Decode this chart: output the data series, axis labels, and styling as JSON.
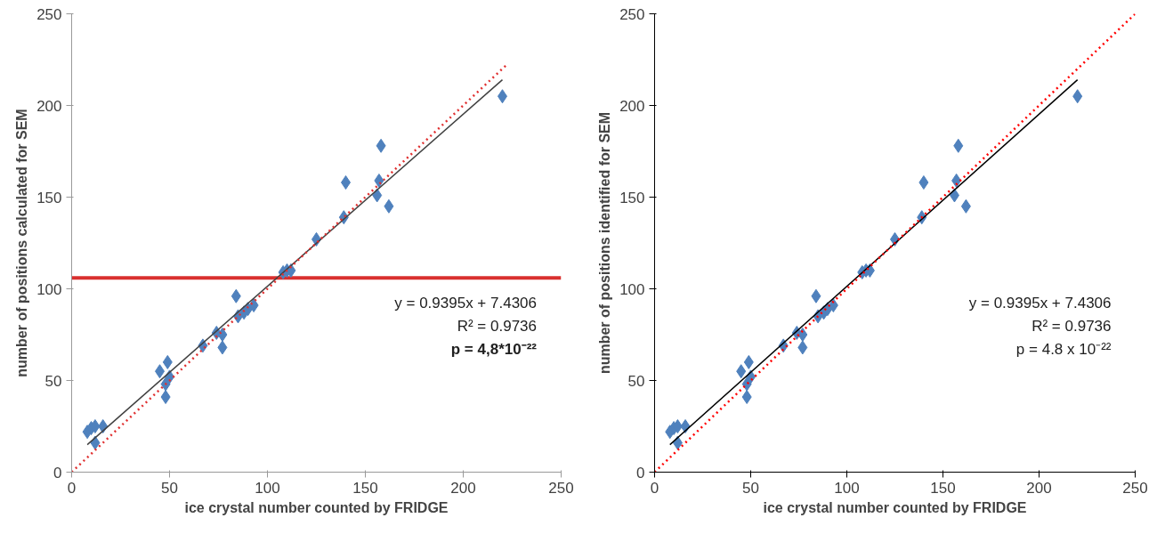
{
  "chart_data": [
    {
      "type": "scatter",
      "xlabel": "ice crystal number counted by FRIDGE",
      "ylabel": "number of positions calculated for SEM",
      "xlim": [
        0,
        250
      ],
      "ylim": [
        0,
        250
      ],
      "xticks": [
        0,
        50,
        100,
        150,
        200,
        250
      ],
      "yticks": [
        0,
        50,
        100,
        150,
        200,
        250
      ],
      "annotations": [
        "y = 0.9395x + 7.4306",
        "R² = 0.9736",
        "p = 4,8*10⁻²²"
      ],
      "ref_lines": [
        {
          "axis": "y",
          "value": 106,
          "color": "#d9302f"
        }
      ],
      "series": [
        {
          "type": "scatter",
          "marker": "diamond",
          "color": "#4f81bd",
          "x": [
            8,
            10,
            12,
            12,
            16,
            45,
            49,
            48,
            48,
            50,
            67,
            74,
            77,
            77,
            84,
            85,
            88,
            90,
            93,
            108,
            110,
            112,
            125,
            139,
            140,
            156,
            157,
            158,
            162,
            220
          ],
          "values": [
            22,
            24,
            25,
            16,
            25,
            55,
            60,
            48,
            41,
            52,
            69,
            76,
            75,
            68,
            96,
            85,
            87,
            89,
            91,
            109,
            110,
            110,
            127,
            139,
            158,
            151,
            159,
            178,
            145,
            205
          ]
        },
        {
          "type": "line",
          "line_style": "solid",
          "color": "#404040",
          "x": [
            8,
            220
          ],
          "values": [
            15,
            214
          ]
        },
        {
          "type": "line",
          "line_style": "dotted",
          "color": "#e03030",
          "x": [
            0,
            222
          ],
          "values": [
            0,
            222
          ]
        }
      ]
    },
    {
      "type": "scatter",
      "xlabel": "ice crystal number counted by FRIDGE",
      "ylabel": "number of positions identified for SEM",
      "xlim": [
        0,
        250
      ],
      "ylim": [
        0,
        250
      ],
      "xticks": [
        0,
        50,
        100,
        150,
        200,
        250
      ],
      "yticks": [
        0,
        50,
        100,
        150,
        200,
        250
      ],
      "annotations": [
        "y = 0.9395x + 7.4306",
        "R² = 0.9736",
        "p = 4.8 x 10⁻²²"
      ],
      "series": [
        {
          "type": "scatter",
          "marker": "diamond",
          "color": "#4f81bd",
          "x": [
            8,
            10,
            12,
            12,
            16,
            45,
            49,
            48,
            48,
            50,
            67,
            74,
            77,
            77,
            84,
            85,
            88,
            90,
            93,
            108,
            110,
            112,
            125,
            139,
            140,
            156,
            157,
            158,
            162,
            220
          ],
          "values": [
            22,
            24,
            25,
            16,
            25,
            55,
            60,
            48,
            41,
            52,
            69,
            76,
            75,
            68,
            96,
            85,
            87,
            89,
            91,
            109,
            110,
            110,
            127,
            139,
            158,
            151,
            159,
            178,
            145,
            205
          ]
        },
        {
          "type": "line",
          "line_style": "solid",
          "color": "#000000",
          "x": [
            8,
            220
          ],
          "values": [
            15,
            214
          ]
        },
        {
          "type": "line",
          "line_style": "dotted",
          "color": "#ff0000",
          "x": [
            0,
            250
          ],
          "values": [
            0,
            250
          ]
        }
      ]
    }
  ]
}
